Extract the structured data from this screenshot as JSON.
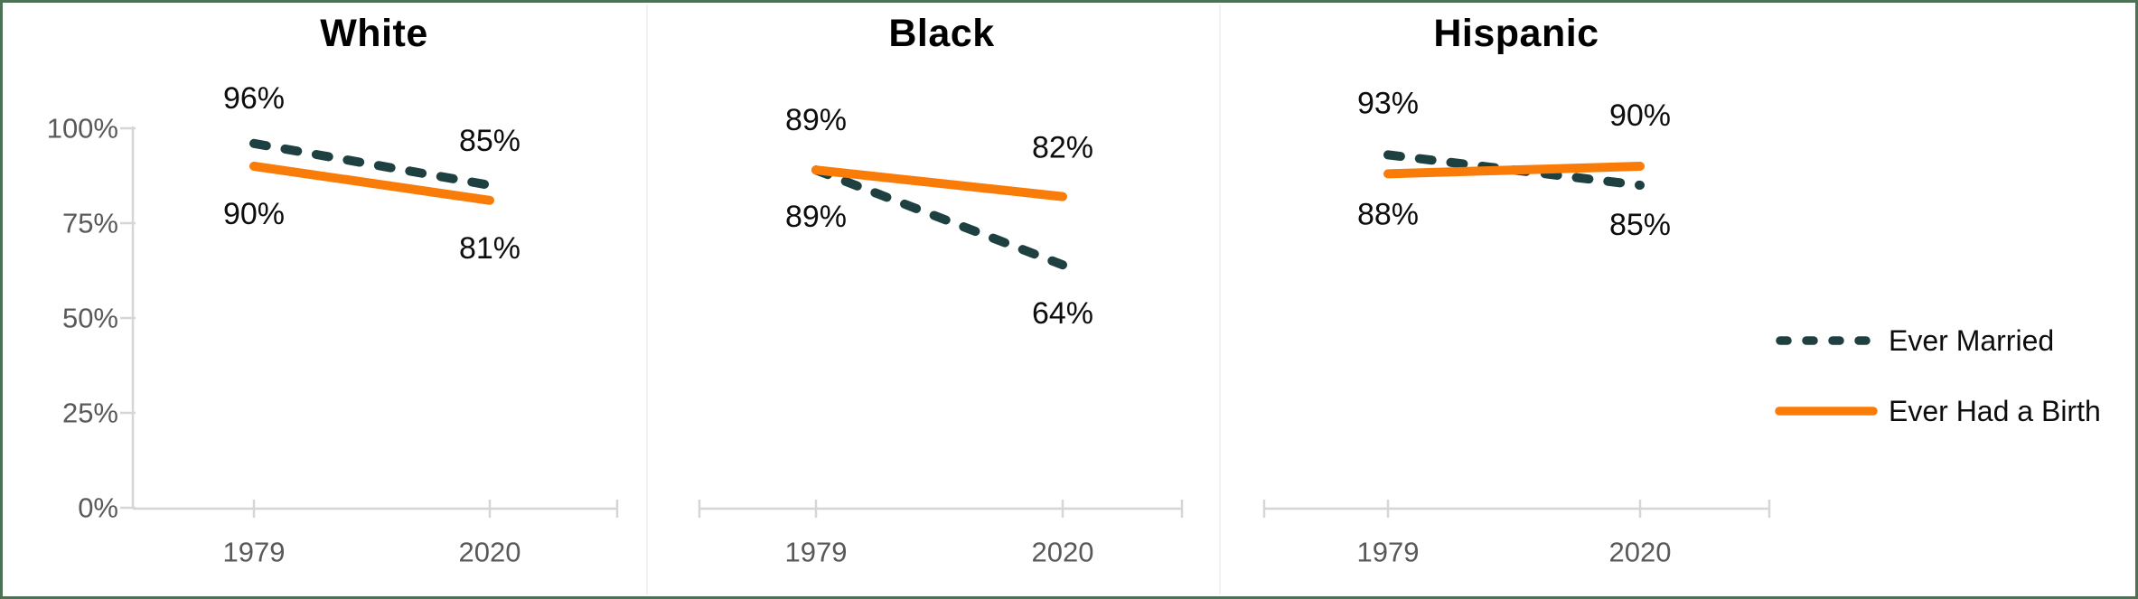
{
  "frame": {
    "border_color": "#4e7054",
    "background_color": "#ffffff"
  },
  "chart_data": {
    "type": "line",
    "x_categories": [
      "1979",
      "2020"
    ],
    "y_ticks": [
      "0%",
      "25%",
      "50%",
      "75%",
      "100%"
    ],
    "y_tick_values": [
      0,
      25,
      50,
      75,
      100
    ],
    "y_range": [
      0,
      100
    ],
    "grid": "off",
    "legend_position": "right",
    "axis_color": "#d6d6d6",
    "tick_label_color": "#595959",
    "data_label_color": "#0d0d0d",
    "panels": [
      {
        "title": "White",
        "series": [
          {
            "name": "Ever Married",
            "values": [
              96,
              85
            ],
            "labels": [
              "96%",
              "85%"
            ]
          },
          {
            "name": "Ever Had a Birth",
            "values": [
              90,
              81
            ],
            "labels": [
              "90%",
              "81%"
            ]
          }
        ]
      },
      {
        "title": "Black",
        "series": [
          {
            "name": "Ever Married",
            "values": [
              89,
              64
            ],
            "labels": [
              "89%",
              "64%"
            ]
          },
          {
            "name": "Ever Had a Birth",
            "values": [
              89,
              82
            ],
            "labels": [
              "89%",
              "82%"
            ]
          }
        ]
      },
      {
        "title": "Hispanic",
        "series": [
          {
            "name": "Ever Married",
            "values": [
              93,
              85
            ],
            "labels": [
              "93%",
              "85%"
            ]
          },
          {
            "name": "Ever Had a Birth",
            "values": [
              88,
              90
            ],
            "labels": [
              "88%",
              "90%"
            ]
          }
        ]
      }
    ],
    "legend": {
      "entries": [
        {
          "label": "Ever Married",
          "line_style": "dashed",
          "color": "#1e4040"
        },
        {
          "label": "Ever Had a Birth",
          "line_style": "solid",
          "color": "#f97c08"
        }
      ]
    }
  }
}
